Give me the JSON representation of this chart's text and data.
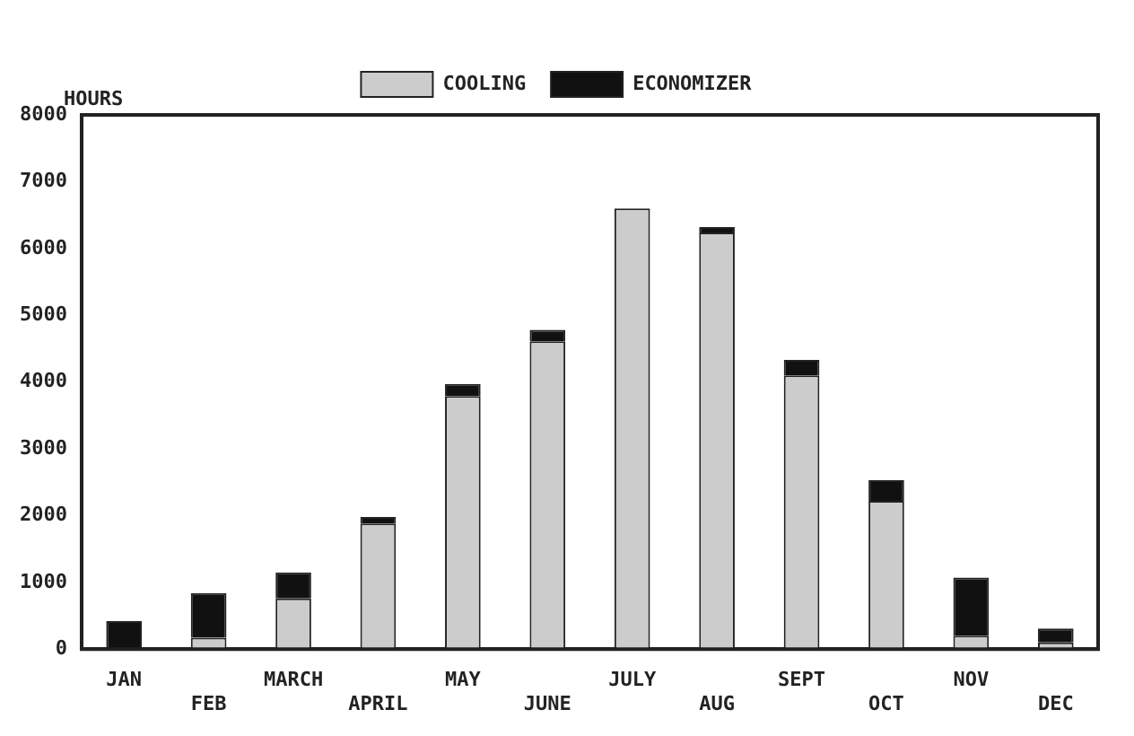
{
  "chart_data": {
    "type": "bar",
    "stacked": true,
    "ylabel": "HOURS",
    "categories": [
      "JAN",
      "FEB",
      "MARCH",
      "APRIL",
      "MAY",
      "JUNE",
      "JULY",
      "AUG",
      "SEPT",
      "OCT",
      "NOV",
      "DEC"
    ],
    "series": [
      {
        "name": "COOLING",
        "color": "#cccccc",
        "values": [
          null,
          170,
          760,
          1880,
          3790,
          4610,
          6600,
          6240,
          4100,
          2220,
          200,
          100
        ]
      },
      {
        "name": "ECONOMIZER",
        "color": "#111111",
        "values": [
          420,
          670,
          390,
          100,
          180,
          170,
          0,
          80,
          230,
          310,
          870,
          210
        ]
      }
    ],
    "ylim": [
      0,
      8000
    ],
    "yticks": [
      0,
      1000,
      2000,
      3000,
      4000,
      5000,
      6000,
      7000,
      8000
    ],
    "grid": false,
    "legend": "top"
  }
}
